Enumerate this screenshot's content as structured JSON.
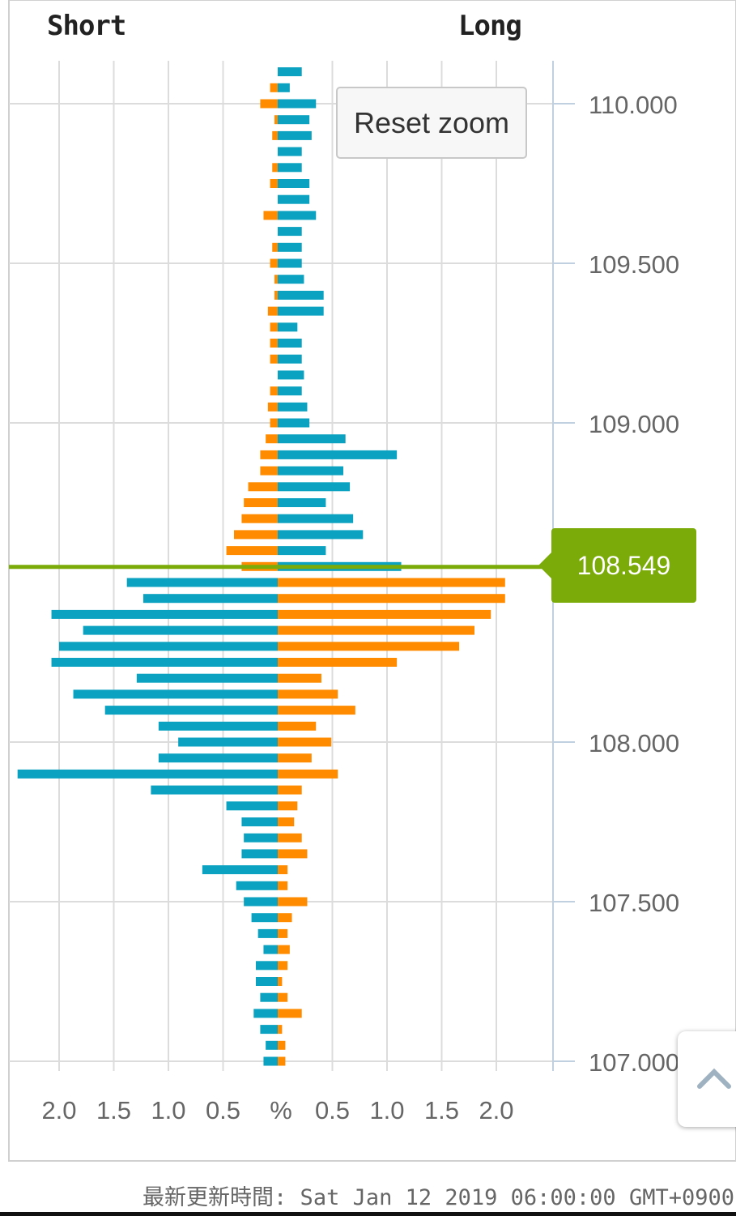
{
  "header": {
    "short_label": "Short",
    "long_label": "Long"
  },
  "reset_zoom_label": "Reset zoom",
  "current_price_label": "108.549",
  "updated_text": "最新更新時間: Sat Jan 12 2019 06:00:00 GMT+0900",
  "colors": {
    "blue": "#0aa2c0",
    "orange": "#ff8c00",
    "price_line": "#7bab08",
    "grid": "#dcdcdc",
    "axis": "#c0d0e0"
  },
  "icons": {
    "scroll_top": "chevron-up-icon"
  },
  "chart_data": {
    "type": "bar",
    "orientation": "horizontal",
    "x_axis_label": "%",
    "x_ticks_left": [
      "2.0",
      "1.5",
      "1.0",
      "0.5"
    ],
    "x_ticks_right": [
      "0.5",
      "1.0",
      "1.5",
      "2.0"
    ],
    "y_ticks": [
      "110.000",
      "109.500",
      "109.000",
      "108.000",
      "107.500",
      "107.000"
    ],
    "current_price": 108.549,
    "bin_size": 0.05,
    "rows": [
      {
        "price": 110.1,
        "short_blue": 0.0,
        "short_orange": 0.0,
        "long_blue": 0.22,
        "long_orange": 0.0
      },
      {
        "price": 110.05,
        "short_blue": 0.0,
        "short_orange": 0.07,
        "long_blue": 0.11,
        "long_orange": 0.0
      },
      {
        "price": 110.0,
        "short_blue": 0.0,
        "short_orange": 0.16,
        "long_blue": 0.35,
        "long_orange": 0.0
      },
      {
        "price": 109.95,
        "short_blue": 0.0,
        "short_orange": 0.03,
        "long_blue": 0.29,
        "long_orange": 0.0
      },
      {
        "price": 109.9,
        "short_blue": 0.0,
        "short_orange": 0.05,
        "long_blue": 0.31,
        "long_orange": 0.0
      },
      {
        "price": 109.85,
        "short_blue": 0.0,
        "short_orange": 0.0,
        "long_blue": 0.22,
        "long_orange": 0.0
      },
      {
        "price": 109.8,
        "short_blue": 0.0,
        "short_orange": 0.05,
        "long_blue": 0.22,
        "long_orange": 0.0
      },
      {
        "price": 109.75,
        "short_blue": 0.0,
        "short_orange": 0.07,
        "long_blue": 0.29,
        "long_orange": 0.0
      },
      {
        "price": 109.7,
        "short_blue": 0.0,
        "short_orange": 0.0,
        "long_blue": 0.29,
        "long_orange": 0.0
      },
      {
        "price": 109.65,
        "short_blue": 0.0,
        "short_orange": 0.13,
        "long_blue": 0.35,
        "long_orange": 0.0
      },
      {
        "price": 109.6,
        "short_blue": 0.0,
        "short_orange": 0.0,
        "long_blue": 0.22,
        "long_orange": 0.0
      },
      {
        "price": 109.55,
        "short_blue": 0.0,
        "short_orange": 0.05,
        "long_blue": 0.22,
        "long_orange": 0.0
      },
      {
        "price": 109.5,
        "short_blue": 0.0,
        "short_orange": 0.07,
        "long_blue": 0.22,
        "long_orange": 0.0
      },
      {
        "price": 109.45,
        "short_blue": 0.0,
        "short_orange": 0.03,
        "long_blue": 0.24,
        "long_orange": 0.0
      },
      {
        "price": 109.4,
        "short_blue": 0.0,
        "short_orange": 0.03,
        "long_blue": 0.42,
        "long_orange": 0.0
      },
      {
        "price": 109.35,
        "short_blue": 0.0,
        "short_orange": 0.09,
        "long_blue": 0.42,
        "long_orange": 0.0
      },
      {
        "price": 109.3,
        "short_blue": 0.0,
        "short_orange": 0.07,
        "long_blue": 0.18,
        "long_orange": 0.0
      },
      {
        "price": 109.25,
        "short_blue": 0.0,
        "short_orange": 0.07,
        "long_blue": 0.22,
        "long_orange": 0.0
      },
      {
        "price": 109.2,
        "short_blue": 0.0,
        "short_orange": 0.07,
        "long_blue": 0.22,
        "long_orange": 0.0
      },
      {
        "price": 109.15,
        "short_blue": 0.0,
        "short_orange": 0.0,
        "long_blue": 0.24,
        "long_orange": 0.0
      },
      {
        "price": 109.1,
        "short_blue": 0.0,
        "short_orange": 0.07,
        "long_blue": 0.22,
        "long_orange": 0.0
      },
      {
        "price": 109.05,
        "short_blue": 0.0,
        "short_orange": 0.09,
        "long_blue": 0.27,
        "long_orange": 0.0
      },
      {
        "price": 109.0,
        "short_blue": 0.0,
        "short_orange": 0.07,
        "long_blue": 0.29,
        "long_orange": 0.0
      },
      {
        "price": 108.95,
        "short_blue": 0.0,
        "short_orange": 0.11,
        "long_blue": 0.62,
        "long_orange": 0.0
      },
      {
        "price": 108.9,
        "short_blue": 0.0,
        "short_orange": 0.16,
        "long_blue": 1.09,
        "long_orange": 0.0
      },
      {
        "price": 108.85,
        "short_blue": 0.0,
        "short_orange": 0.16,
        "long_blue": 0.6,
        "long_orange": 0.0
      },
      {
        "price": 108.8,
        "short_blue": 0.0,
        "short_orange": 0.27,
        "long_blue": 0.66,
        "long_orange": 0.0
      },
      {
        "price": 108.75,
        "short_blue": 0.0,
        "short_orange": 0.31,
        "long_blue": 0.44,
        "long_orange": 0.0
      },
      {
        "price": 108.7,
        "short_blue": 0.0,
        "short_orange": 0.33,
        "long_blue": 0.69,
        "long_orange": 0.0
      },
      {
        "price": 108.65,
        "short_blue": 0.0,
        "short_orange": 0.4,
        "long_blue": 0.78,
        "long_orange": 0.0
      },
      {
        "price": 108.6,
        "short_blue": 0.0,
        "short_orange": 0.47,
        "long_blue": 0.44,
        "long_orange": 0.0
      },
      {
        "price": 108.55,
        "short_blue": 0.0,
        "short_orange": 0.33,
        "long_blue": 1.13,
        "long_orange": 0.0
      },
      {
        "price": 108.5,
        "short_blue": 1.38,
        "short_orange": 0.0,
        "long_blue": 0.0,
        "long_orange": 2.08
      },
      {
        "price": 108.45,
        "short_blue": 1.23,
        "short_orange": 0.0,
        "long_blue": 0.0,
        "long_orange": 2.08
      },
      {
        "price": 108.4,
        "short_blue": 2.07,
        "short_orange": 0.0,
        "long_blue": 0.0,
        "long_orange": 1.95
      },
      {
        "price": 108.35,
        "short_blue": 1.78,
        "short_orange": 0.0,
        "long_blue": 0.0,
        "long_orange": 1.8
      },
      {
        "price": 108.3,
        "short_blue": 2.0,
        "short_orange": 0.0,
        "long_blue": 0.0,
        "long_orange": 1.66
      },
      {
        "price": 108.25,
        "short_blue": 2.07,
        "short_orange": 0.0,
        "long_blue": 0.0,
        "long_orange": 1.09
      },
      {
        "price": 108.2,
        "short_blue": 1.29,
        "short_orange": 0.0,
        "long_blue": 0.0,
        "long_orange": 0.4
      },
      {
        "price": 108.15,
        "short_blue": 1.87,
        "short_orange": 0.0,
        "long_blue": 0.0,
        "long_orange": 0.55
      },
      {
        "price": 108.1,
        "short_blue": 1.58,
        "short_orange": 0.0,
        "long_blue": 0.0,
        "long_orange": 0.71
      },
      {
        "price": 108.05,
        "short_blue": 1.09,
        "short_orange": 0.0,
        "long_blue": 0.0,
        "long_orange": 0.35
      },
      {
        "price": 108.0,
        "short_blue": 0.91,
        "short_orange": 0.0,
        "long_blue": 0.0,
        "long_orange": 0.49
      },
      {
        "price": 107.95,
        "short_blue": 1.09,
        "short_orange": 0.0,
        "long_blue": 0.0,
        "long_orange": 0.31
      },
      {
        "price": 107.9,
        "short_blue": 2.38,
        "short_orange": 0.0,
        "long_blue": 0.0,
        "long_orange": 0.55
      },
      {
        "price": 107.85,
        "short_blue": 1.16,
        "short_orange": 0.0,
        "long_blue": 0.0,
        "long_orange": 0.22
      },
      {
        "price": 107.8,
        "short_blue": 0.47,
        "short_orange": 0.0,
        "long_blue": 0.0,
        "long_orange": 0.18
      },
      {
        "price": 107.75,
        "short_blue": 0.33,
        "short_orange": 0.0,
        "long_blue": 0.0,
        "long_orange": 0.15
      },
      {
        "price": 107.7,
        "short_blue": 0.31,
        "short_orange": 0.0,
        "long_blue": 0.0,
        "long_orange": 0.22
      },
      {
        "price": 107.65,
        "short_blue": 0.33,
        "short_orange": 0.0,
        "long_blue": 0.0,
        "long_orange": 0.27
      },
      {
        "price": 107.6,
        "short_blue": 0.69,
        "short_orange": 0.0,
        "long_blue": 0.0,
        "long_orange": 0.09
      },
      {
        "price": 107.55,
        "short_blue": 0.38,
        "short_orange": 0.0,
        "long_blue": 0.0,
        "long_orange": 0.09
      },
      {
        "price": 107.5,
        "short_blue": 0.31,
        "short_orange": 0.0,
        "long_blue": 0.0,
        "long_orange": 0.27
      },
      {
        "price": 107.45,
        "short_blue": 0.24,
        "short_orange": 0.0,
        "long_blue": 0.0,
        "long_orange": 0.13
      },
      {
        "price": 107.4,
        "short_blue": 0.18,
        "short_orange": 0.0,
        "long_blue": 0.0,
        "long_orange": 0.09
      },
      {
        "price": 107.35,
        "short_blue": 0.13,
        "short_orange": 0.0,
        "long_blue": 0.0,
        "long_orange": 0.11
      },
      {
        "price": 107.3,
        "short_blue": 0.2,
        "short_orange": 0.0,
        "long_blue": 0.0,
        "long_orange": 0.09
      },
      {
        "price": 107.25,
        "short_blue": 0.2,
        "short_orange": 0.0,
        "long_blue": 0.0,
        "long_orange": 0.04
      },
      {
        "price": 107.2,
        "short_blue": 0.16,
        "short_orange": 0.0,
        "long_blue": 0.0,
        "long_orange": 0.09
      },
      {
        "price": 107.15,
        "short_blue": 0.22,
        "short_orange": 0.0,
        "long_blue": 0.0,
        "long_orange": 0.22
      },
      {
        "price": 107.1,
        "short_blue": 0.16,
        "short_orange": 0.0,
        "long_blue": 0.0,
        "long_orange": 0.04
      },
      {
        "price": 107.05,
        "short_blue": 0.11,
        "short_orange": 0.0,
        "long_blue": 0.0,
        "long_orange": 0.07
      },
      {
        "price": 107.0,
        "short_blue": 0.13,
        "short_orange": 0.0,
        "long_blue": 0.0,
        "long_orange": 0.07
      }
    ]
  }
}
